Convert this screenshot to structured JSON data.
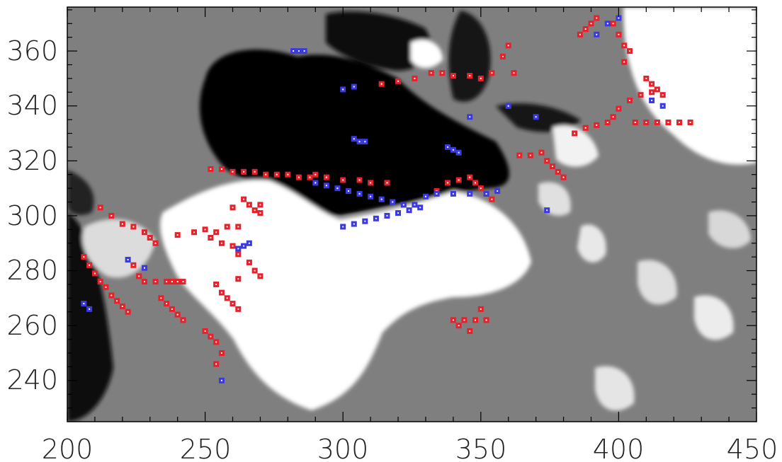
{
  "chart_data": {
    "type": "heatmap",
    "title": "",
    "xlabel": "",
    "ylabel": "",
    "xlim": [
      200,
      450
    ],
    "ylim": [
      225,
      376
    ],
    "xticks": [
      200,
      250,
      300,
      350,
      400,
      450
    ],
    "xtick_labels": [
      "200",
      "250",
      "300",
      "350",
      "400",
      "450"
    ],
    "yticks": [
      240,
      260,
      280,
      300,
      320,
      340,
      360
    ],
    "ytick_labels": [
      "240",
      "260",
      "280",
      "300",
      "320",
      "340",
      "360"
    ],
    "grid": false,
    "colormap": "grayscale",
    "colors": {
      "background_gray": "#7f7f7f",
      "negative_polarity": "#000000",
      "positive_polarity": "#ffffff",
      "red_markers": "#e8202a",
      "blue_markers": "#3a3ae0"
    },
    "series": [
      {
        "color": "#e8202a",
        "points": [
          [
            252,
            317
          ],
          [
            256,
            317
          ],
          [
            260,
            316
          ],
          [
            264,
            316
          ],
          [
            268,
            316
          ],
          [
            272,
            315
          ],
          [
            276,
            315
          ],
          [
            280,
            315
          ],
          [
            284,
            314
          ],
          [
            288,
            314
          ],
          [
            290,
            315
          ],
          [
            294,
            314
          ],
          [
            300,
            313
          ],
          [
            306,
            313
          ],
          [
            310,
            312
          ],
          [
            316,
            312
          ],
          [
            314,
            348
          ],
          [
            320,
            349
          ],
          [
            326,
            350
          ],
          [
            332,
            352
          ],
          [
            336,
            352
          ],
          [
            340,
            351
          ],
          [
            346,
            351
          ],
          [
            350,
            350
          ],
          [
            354,
            352
          ],
          [
            358,
            358
          ],
          [
            360,
            362
          ],
          [
            362,
            352
          ],
          [
            260,
            303
          ],
          [
            264,
            306
          ],
          [
            266,
            304
          ],
          [
            268,
            302
          ],
          [
            270,
            301
          ],
          [
            270,
            304
          ],
          [
            252,
            292
          ],
          [
            256,
            290
          ],
          [
            260,
            289
          ],
          [
            262,
            286
          ],
          [
            266,
            283
          ],
          [
            268,
            280
          ],
          [
            270,
            278
          ],
          [
            262,
            277
          ],
          [
            240,
            293
          ],
          [
            246,
            294
          ],
          [
            250,
            295
          ],
          [
            254,
            294
          ],
          [
            258,
            296
          ],
          [
            262,
            296
          ],
          [
            212,
            303
          ],
          [
            216,
            300
          ],
          [
            220,
            297
          ],
          [
            224,
            296
          ],
          [
            228,
            294
          ],
          [
            230,
            292
          ],
          [
            232,
            290
          ],
          [
            224,
            282
          ],
          [
            226,
            278
          ],
          [
            228,
            276
          ],
          [
            232,
            276
          ],
          [
            236,
            276
          ],
          [
            238,
            276
          ],
          [
            240,
            276
          ],
          [
            242,
            276
          ],
          [
            206,
            285
          ],
          [
            208,
            282
          ],
          [
            210,
            279
          ],
          [
            212,
            276
          ],
          [
            214,
            274
          ],
          [
            216,
            271
          ],
          [
            218,
            269
          ],
          [
            220,
            267
          ],
          [
            222,
            265
          ],
          [
            234,
            270
          ],
          [
            236,
            268
          ],
          [
            238,
            266
          ],
          [
            240,
            264
          ],
          [
            242,
            262
          ],
          [
            254,
            275
          ],
          [
            256,
            272
          ],
          [
            258,
            270
          ],
          [
            260,
            268
          ],
          [
            262,
            266
          ],
          [
            250,
            258
          ],
          [
            252,
            256
          ],
          [
            254,
            254
          ],
          [
            256,
            250
          ],
          [
            254,
            246
          ],
          [
            340,
            262
          ],
          [
            342,
            260
          ],
          [
            344,
            262
          ],
          [
            346,
            258
          ],
          [
            348,
            262
          ],
          [
            350,
            266
          ],
          [
            352,
            262
          ],
          [
            334,
            309
          ],
          [
            338,
            312
          ],
          [
            342,
            313
          ],
          [
            346,
            314
          ],
          [
            348,
            312
          ],
          [
            350,
            310
          ],
          [
            352,
            308
          ],
          [
            354,
            306
          ],
          [
            364,
            322
          ],
          [
            368,
            322
          ],
          [
            372,
            323
          ],
          [
            374,
            320
          ],
          [
            376,
            318
          ],
          [
            378,
            316
          ],
          [
            380,
            314
          ],
          [
            384,
            330
          ],
          [
            388,
            332
          ],
          [
            392,
            333
          ],
          [
            396,
            334
          ],
          [
            398,
            336
          ],
          [
            400,
            339
          ],
          [
            404,
            342
          ],
          [
            408,
            344
          ],
          [
            412,
            345
          ],
          [
            406,
            334
          ],
          [
            410,
            334
          ],
          [
            414,
            334
          ],
          [
            418,
            334
          ],
          [
            422,
            334
          ],
          [
            426,
            334
          ],
          [
            410,
            350
          ],
          [
            412,
            348
          ],
          [
            414,
            346
          ],
          [
            416,
            344
          ],
          [
            398,
            370
          ],
          [
            400,
            366
          ],
          [
            402,
            362
          ],
          [
            404,
            360
          ],
          [
            402,
            356
          ],
          [
            386,
            366
          ],
          [
            388,
            368
          ],
          [
            390,
            370
          ],
          [
            392,
            372
          ]
        ]
      },
      {
        "color": "#3a3ae0",
        "points": [
          [
            290,
            312
          ],
          [
            294,
            311
          ],
          [
            298,
            310
          ],
          [
            302,
            309
          ],
          [
            306,
            308
          ],
          [
            310,
            307
          ],
          [
            314,
            306
          ],
          [
            318,
            305
          ],
          [
            322,
            304
          ],
          [
            326,
            304
          ],
          [
            300,
            296
          ],
          [
            304,
            297
          ],
          [
            308,
            298
          ],
          [
            312,
            299
          ],
          [
            316,
            300
          ],
          [
            320,
            301
          ],
          [
            324,
            302
          ],
          [
            328,
            303
          ],
          [
            330,
            307
          ],
          [
            334,
            308
          ],
          [
            340,
            308
          ],
          [
            346,
            308
          ],
          [
            352,
            308
          ],
          [
            356,
            309
          ],
          [
            282,
            360
          ],
          [
            284,
            360
          ],
          [
            286,
            360
          ],
          [
            304,
            328
          ],
          [
            306,
            327
          ],
          [
            308,
            327
          ],
          [
            338,
            325
          ],
          [
            340,
            324
          ],
          [
            342,
            323
          ],
          [
            300,
            346
          ],
          [
            304,
            347
          ],
          [
            346,
            336
          ],
          [
            206,
            268
          ],
          [
            208,
            266
          ],
          [
            222,
            284
          ],
          [
            228,
            281
          ],
          [
            262,
            288
          ],
          [
            264,
            289
          ],
          [
            266,
            290
          ],
          [
            392,
            366
          ],
          [
            396,
            370
          ],
          [
            400,
            372
          ],
          [
            412,
            342
          ],
          [
            416,
            340
          ],
          [
            360,
            340
          ],
          [
            370,
            336
          ],
          [
            374,
            302
          ],
          [
            256,
            240
          ]
        ]
      }
    ]
  }
}
